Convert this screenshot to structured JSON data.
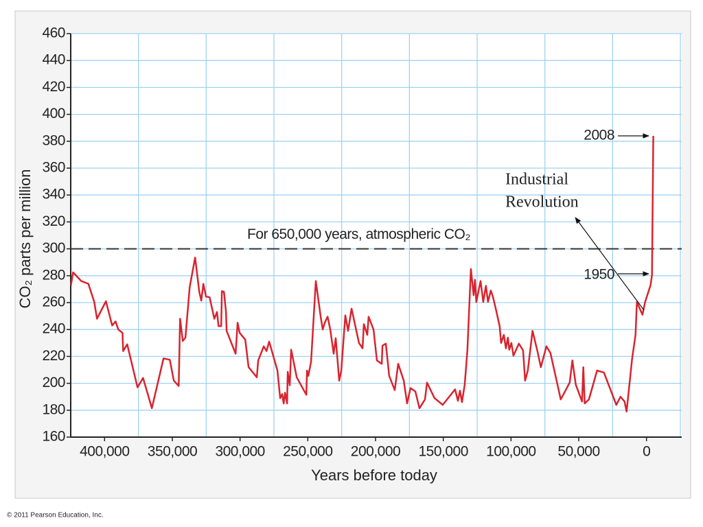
{
  "chart_data": {
    "type": "line",
    "xlabel": "Years before today",
    "ylabel": "CO₂ parts per million",
    "xlim": [
      425000,
      -26000
    ],
    "ylim": [
      160,
      460
    ],
    "xticks": [
      {
        "value": 400000,
        "label": "400,000"
      },
      {
        "value": 350000,
        "label": "350,000"
      },
      {
        "value": 300000,
        "label": "300,000"
      },
      {
        "value": 250000,
        "label": "250,000"
      },
      {
        "value": 200000,
        "label": "200,000"
      },
      {
        "value": 150000,
        "label": "150,000"
      },
      {
        "value": 100000,
        "label": "100,000"
      },
      {
        "value": 50000,
        "label": "50,000"
      },
      0
    ],
    "xgrid": [
      375000,
      325000,
      275000,
      225000,
      175000,
      125000,
      75000,
      25000,
      -25000
    ],
    "yticks": [
      160,
      180,
      200,
      220,
      240,
      260,
      280,
      300,
      320,
      340,
      360,
      380,
      400,
      420,
      440,
      460
    ],
    "grid": true,
    "hline": {
      "value": 300,
      "label": "For 650,000 years, atmospheric CO₂"
    },
    "annotations": [
      {
        "text": "2008"
      },
      {
        "text": "1950"
      },
      {
        "text": [
          "Industrial",
          "Revolution"
        ]
      }
    ],
    "series": [
      {
        "color": "#d9232d",
        "x": [
          424800,
          423300,
          417200,
          412000,
          407600,
          405600,
          399000,
          394400,
          391900,
          389900,
          386800,
          386300,
          383300,
          375700,
          371600,
          365100,
          356500,
          351900,
          348900,
          345300,
          344300,
          342300,
          340300,
          337200,
          333200,
          330100,
          328600,
          327100,
          325100,
          322500,
          319000,
          317000,
          315900,
          313900,
          313400,
          311900,
          310400,
          309900,
          303300,
          301800,
          300300,
          296200,
          293700,
          287600,
          286600,
          282500,
          280500,
          278500,
          272400,
          270400,
          268900,
          267800,
          266800,
          265300,
          264800,
          263300,
          262300,
          258200,
          251100,
          250600,
          249600,
          247600,
          244100,
          240500,
          239000,
          237500,
          235400,
          233400,
          230900,
          229400,
          226800,
          225300,
          222300,
          220300,
          217700,
          212200,
          209600,
          208600,
          206100,
          205100,
          201500,
          199000,
          195400,
          194900,
          192400,
          189900,
          185800,
          183300,
          179200,
          176700,
          174200,
          170600,
          167600,
          163500,
          162000,
          156500,
          150400,
          141300,
          139200,
          137700,
          136200,
          134200,
          132200,
          129600,
          127600,
          126600,
          125600,
          122500,
          120500,
          118500,
          117000,
          114900,
          113400,
          111400,
          108400,
          107300,
          105300,
          103800,
          102300,
          101300,
          99700,
          98200,
          94200,
          91100,
          89600,
          87600,
          84100,
          80500,
          78000,
          73900,
          70900,
          63300,
          56700,
          54700,
          52200,
          47600,
          46600,
          45600,
          42500,
          36500,
          31400,
          22300,
          19200,
          16200,
          14700,
          10600,
          8100,
          7100,
          3000,
          1000,
          -3000,
          -4050,
          -5000
        ],
        "values": [
          273,
          282.5,
          276,
          274,
          260.5,
          248,
          261,
          243,
          246,
          240,
          237.5,
          224,
          229,
          197,
          204,
          181.5,
          218.5,
          217.5,
          202,
          198,
          248,
          231.5,
          234,
          271.5,
          293.5,
          268,
          261.5,
          274,
          264.5,
          264,
          248,
          253,
          242.5,
          242.5,
          268.5,
          268,
          253,
          239,
          222,
          245,
          237.5,
          232.5,
          212,
          204.5,
          217,
          227.5,
          224,
          231,
          209.5,
          189,
          192,
          185,
          193,
          185,
          208.5,
          198.5,
          225,
          204.5,
          191.5,
          209.5,
          205.5,
          216,
          276,
          249.5,
          240,
          245,
          249.5,
          240,
          222,
          233.5,
          202,
          209.5,
          250.5,
          239,
          255.5,
          230,
          226,
          244,
          236,
          249.5,
          240,
          217,
          214.5,
          228,
          229.5,
          205.5,
          195,
          214.5,
          202,
          185,
          196.5,
          194,
          181.5,
          188,
          200.5,
          189,
          184,
          195.5,
          187,
          194.5,
          186,
          199,
          224.5,
          285,
          265.5,
          277,
          260.5,
          276,
          260.5,
          272.5,
          260.5,
          269,
          264.5,
          256,
          242.5,
          230,
          236,
          226,
          234,
          225,
          230,
          220.5,
          229.5,
          224.5,
          202,
          209.5,
          239,
          224,
          212,
          227.5,
          222.5,
          188,
          200.5,
          217,
          199,
          186.5,
          212,
          185,
          188,
          209.5,
          208,
          184,
          190,
          186.5,
          179,
          218.5,
          236,
          260.5,
          251,
          260.5,
          273,
          280.5,
          384
        ]
      }
    ]
  },
  "footer": "© 2011 Pearson Education, Inc."
}
